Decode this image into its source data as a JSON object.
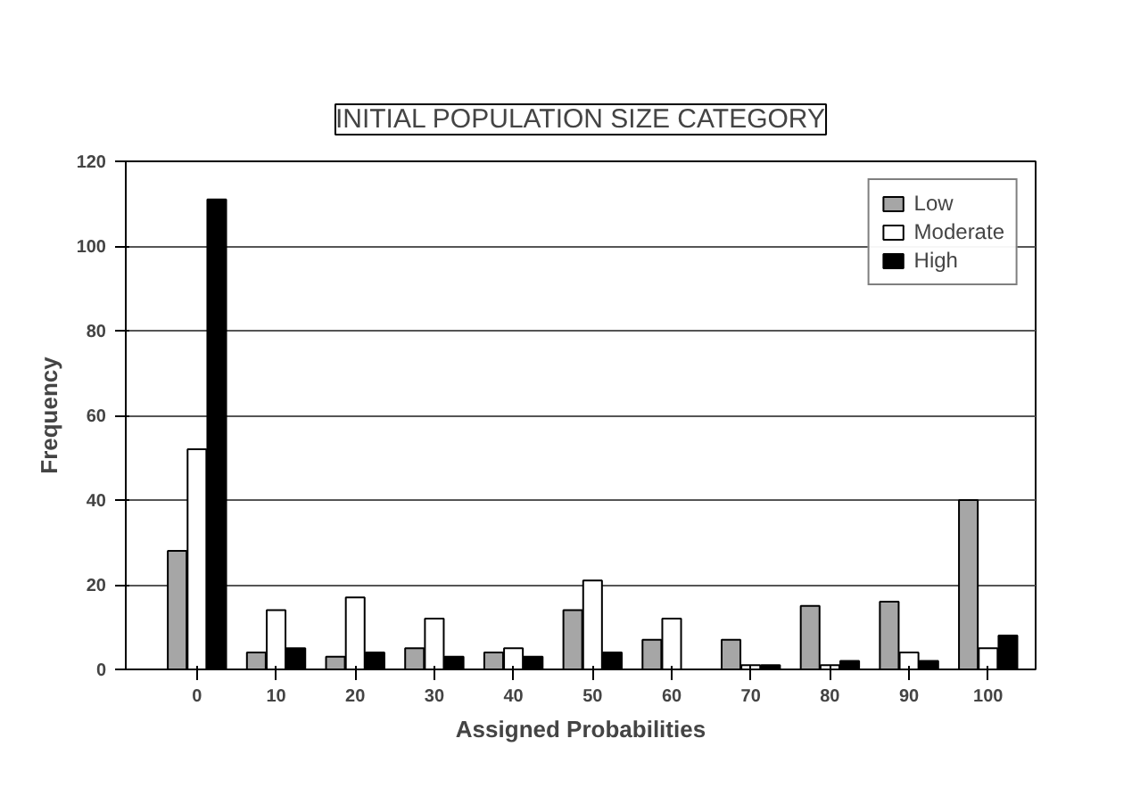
{
  "chart_data": {
    "type": "bar",
    "title": "INITIAL POPULATION SIZE CATEGORY",
    "xlabel": "Assigned Probabilities",
    "ylabel": "Frequency",
    "categories": [
      "0",
      "10",
      "20",
      "30",
      "40",
      "50",
      "60",
      "70",
      "80",
      "90",
      "100"
    ],
    "series": [
      {
        "name": "Low",
        "color": "#a6a6a6",
        "values": [
          28,
          4,
          3,
          5,
          4,
          14,
          7,
          7,
          15,
          16,
          40
        ]
      },
      {
        "name": "Moderate",
        "color": "#ffffff",
        "values": [
          52,
          14,
          17,
          12,
          5,
          21,
          12,
          1,
          1,
          4,
          5
        ]
      },
      {
        "name": "High",
        "color": "#000000",
        "values": [
          111,
          5,
          4,
          3,
          3,
          4,
          0,
          1,
          2,
          2,
          8
        ]
      }
    ],
    "ylim": [
      0,
      120
    ],
    "yticks": [
      0,
      20,
      40,
      60,
      80,
      100,
      120
    ],
    "grid": "y",
    "legend": "top right"
  }
}
